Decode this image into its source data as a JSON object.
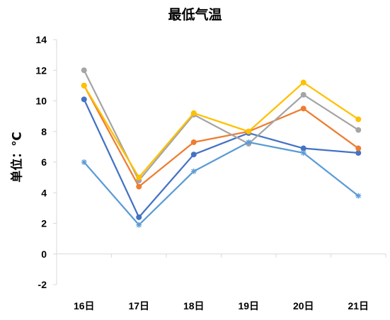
{
  "chart_data": {
    "type": "line",
    "title": "最低气温",
    "xlabel": "",
    "ylabel": "单位：℃",
    "categories": [
      "16日",
      "17日",
      "18日",
      "19日",
      "20日",
      "21日"
    ],
    "ylim": [
      -2,
      14
    ],
    "yticks": [
      -2,
      0,
      2,
      4,
      6,
      8,
      10,
      12,
      14
    ],
    "grid": false,
    "legend": "none",
    "series": [
      {
        "color": "#4472C4",
        "marker": "circle",
        "values": [
          10.1,
          2.4,
          6.5,
          7.9,
          6.9,
          6.6
        ]
      },
      {
        "color": "#ED7D31",
        "marker": "circle",
        "values": [
          11.0,
          4.4,
          7.3,
          8.0,
          9.5,
          6.9
        ]
      },
      {
        "color": "#A5A5A5",
        "marker": "circle",
        "values": [
          12.0,
          4.8,
          9.1,
          7.2,
          10.4,
          8.1
        ]
      },
      {
        "color": "#FFC000",
        "marker": "circle",
        "values": [
          11.0,
          5.0,
          9.2,
          8.0,
          11.2,
          8.8
        ]
      },
      {
        "color": "#5B9BD5",
        "marker": "star",
        "values": [
          6.0,
          1.9,
          5.4,
          7.3,
          6.6,
          3.8
        ]
      }
    ]
  }
}
